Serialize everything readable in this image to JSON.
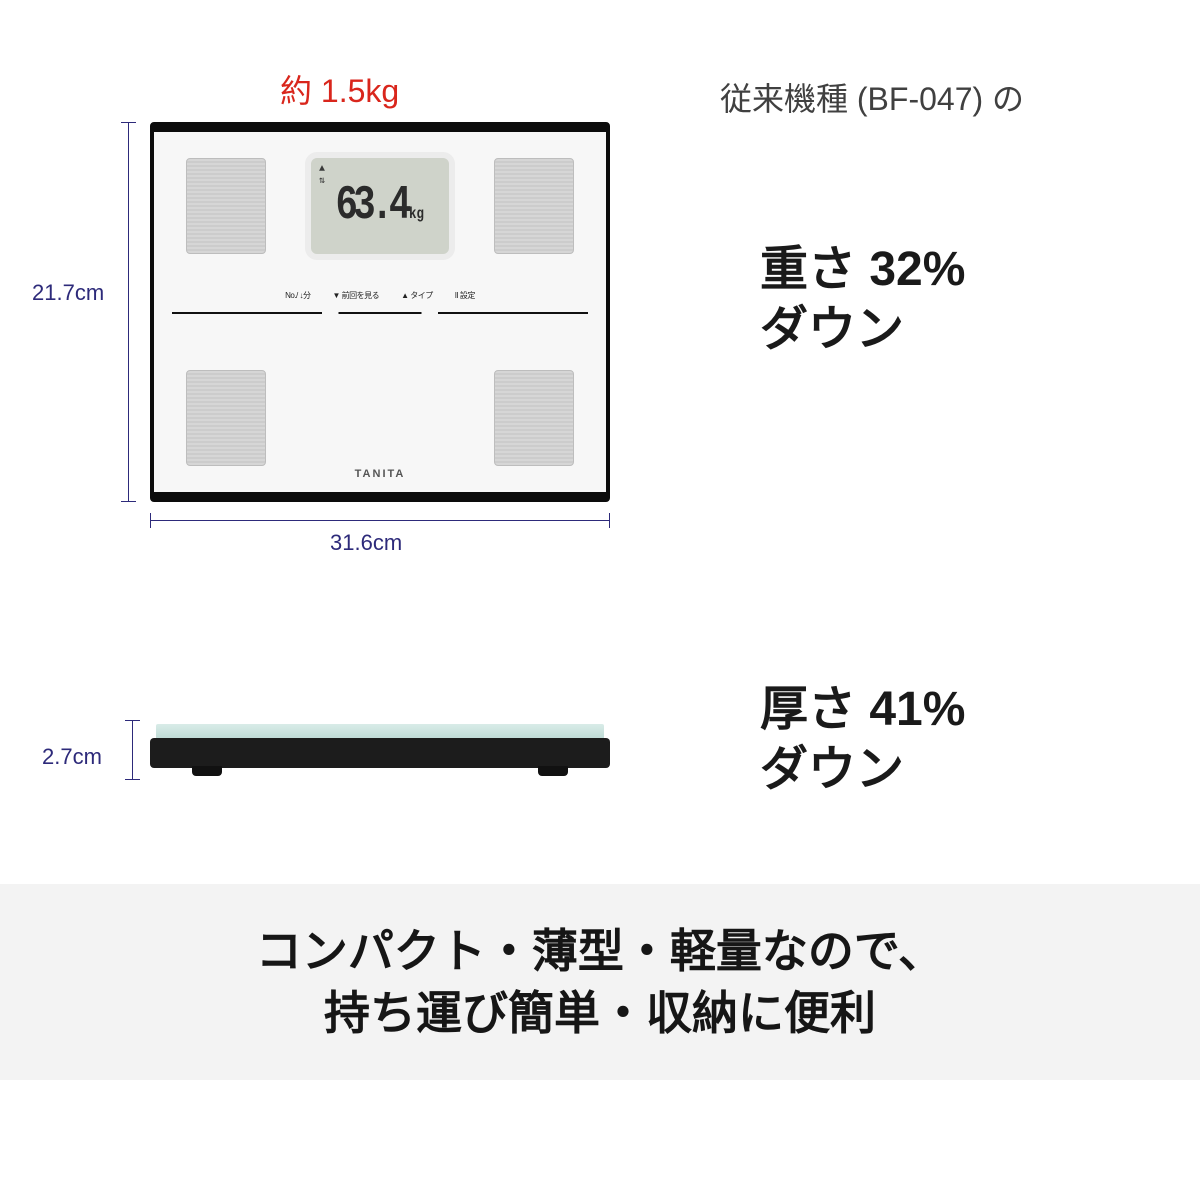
{
  "colors": {
    "accent_red": "#d9261c",
    "dim_line": "#2d2a7a",
    "body_text": "#1a1a1a",
    "sub_text": "#404040",
    "banner_bg": "#f3f3f3"
  },
  "product": {
    "weight_label": "約 1.5kg",
    "height_cm": "21.7cm",
    "width_cm": "31.6cm",
    "thickness_cm": "2.7cm",
    "lcd_value": "63.4",
    "lcd_unit": "kg",
    "brand": "TANITA",
    "buttons": [
      "No./\n↓分",
      "▼\n前回を見る",
      "▲\nタイプ",
      "II\n設定"
    ]
  },
  "compare": {
    "reference_line": "従来機種 (BF-047) の",
    "metric1_line1": "重さ 32%",
    "metric1_line2": "ダウン",
    "metric2_line1": "厚さ 41%",
    "metric2_line2": "ダウン"
  },
  "banner": {
    "line1": "コンパクト・薄型・軽量なので、",
    "line2": "持ち運び簡単・収納に便利"
  }
}
